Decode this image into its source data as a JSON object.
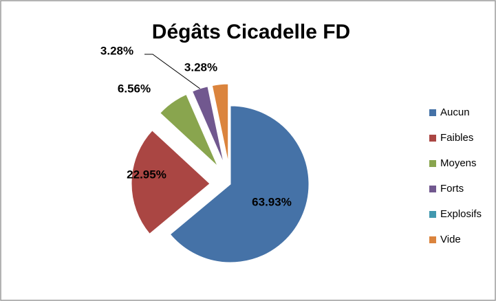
{
  "chart_data": {
    "type": "pie",
    "title": "Dégâts Cicadelle FD",
    "categories": [
      "Aucun",
      "Faibles",
      "Moyens",
      "Forts",
      "Explosifs",
      "Vide"
    ],
    "values": [
      63.93,
      22.95,
      6.56,
      3.28,
      0,
      3.28
    ],
    "value_labels": [
      "63.93%",
      "22.95%",
      "6.56%",
      "3.28%",
      null,
      "3.28%"
    ],
    "colors": [
      "#4572a7",
      "#aa4643",
      "#89a54e",
      "#71588f",
      "#4198af",
      "#db843d"
    ],
    "legend": "right"
  }
}
